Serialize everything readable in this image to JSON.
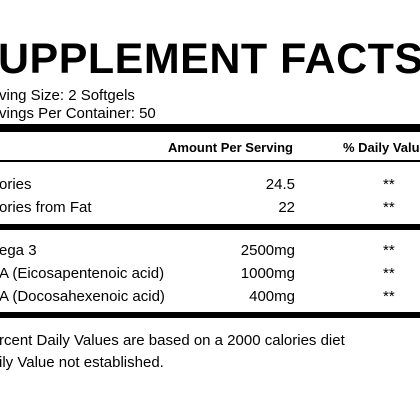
{
  "header": {
    "title": "UPPLEMENT FACTS",
    "serving_size": "ving Size: 2 Softgels",
    "servings_per_container": "vings Per Container: 50"
  },
  "table": {
    "columns": [
      "Amount Per Serving",
      "% Daily Valu"
    ],
    "rows": [
      [
        "ories",
        "24.5",
        "**"
      ],
      [
        "ories from Fat",
        "22",
        "**"
      ],
      [
        "ega 3",
        "2500mg",
        "**"
      ],
      [
        "A (Eicosapentenoic acid)",
        "1000mg",
        "**"
      ],
      [
        "A (Docosahexenoic acid)",
        "400mg",
        "**"
      ]
    ]
  },
  "footnotes": [
    "rcent Daily Values are based on a 2000 calories diet",
    "ily Value not established."
  ]
}
